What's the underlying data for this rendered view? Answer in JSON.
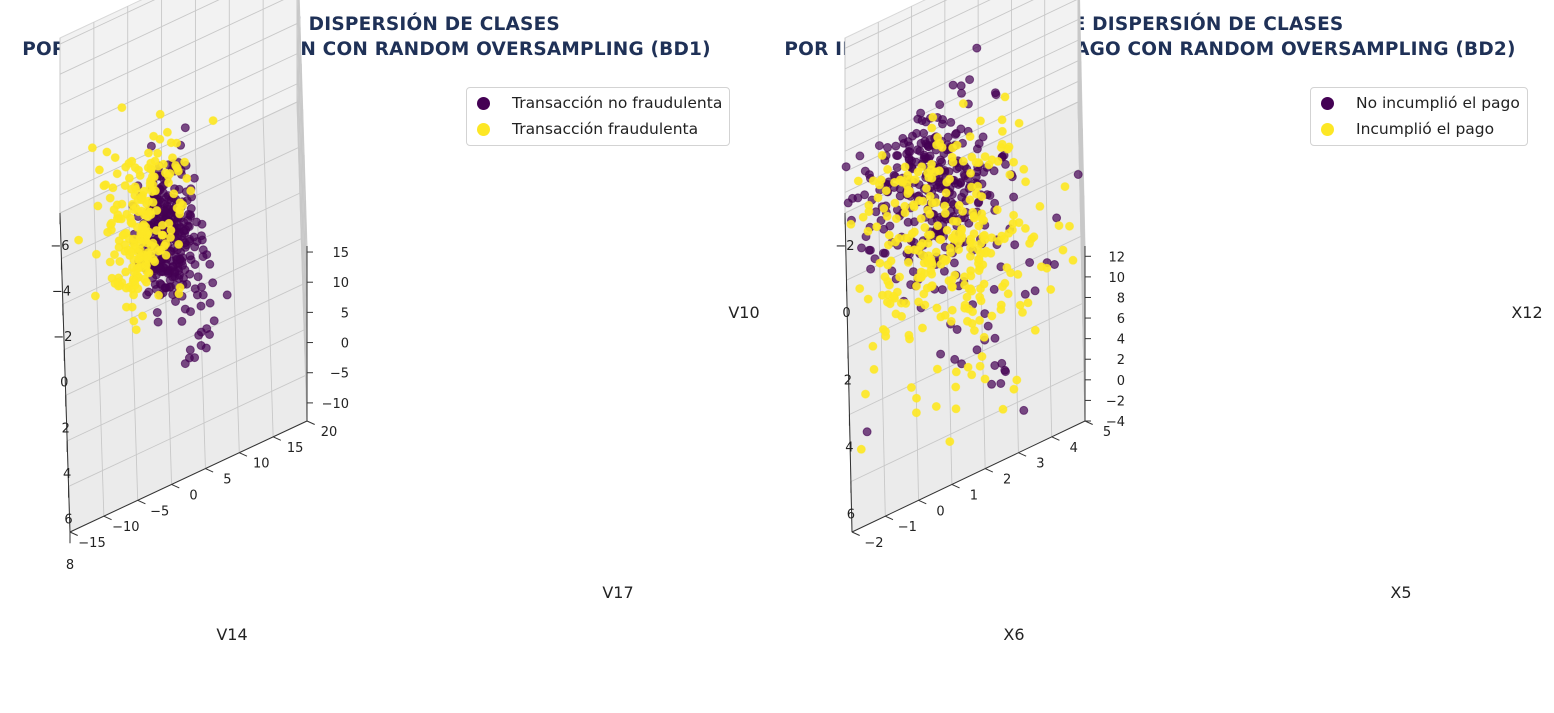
{
  "colors": {
    "class0": "#440154",
    "class1": "#fde725",
    "pane": "#f2f2f2",
    "grid": "#c8c8c8"
  },
  "chart_data": [
    {
      "type": "scatter",
      "title_lines": [
        "GRÁFICO DE DISPERSIÓN DE CLASES",
        "POR TIPO DE TRANSACCIÓN CON RANDOM OVERSAMPLING (BD1)"
      ],
      "xlabel": "V14",
      "ylabel": "V17",
      "zlabel": "V10",
      "xlim": [
        -6,
        8
      ],
      "ylim": [
        -15,
        20
      ],
      "zlim": [
        -13,
        16
      ],
      "xticks": [
        -6,
        -4,
        -2,
        0,
        2,
        4,
        6,
        8
      ],
      "yticks": [
        -15,
        -10,
        -5,
        0,
        5,
        10,
        15,
        20
      ],
      "zticks": [
        -10,
        -5,
        0,
        5,
        10,
        15
      ],
      "legend": {
        "position": "top-right",
        "entries": [
          "Transacción no fraudulenta",
          "Transacción fraudulenta"
        ]
      },
      "series": [
        {
          "name": "Transacción no fraudulenta",
          "clusters": [
            {
              "center": [
                0.5,
                0,
                0.5
              ],
              "spread": [
                1.4,
                2.2,
                1.8
              ],
              "n": 260
            },
            {
              "center": [
                3.2,
                3.0,
                1.8
              ],
              "spread": [
                0.9,
                2.0,
                1.2
              ],
              "n": 40
            },
            {
              "center": [
                6.5,
                4.0,
                3.5
              ],
              "spread": [
                0.5,
                1.2,
                1.0
              ],
              "n": 10
            }
          ]
        },
        {
          "name": "Transacción fraudulenta",
          "clusters": [
            {
              "center": [
                -2.5,
                -3.0,
                -5.0
              ],
              "spread": [
                1.6,
                3.5,
                3.0
              ],
              "n": 150
            },
            {
              "center": [
                0.5,
                -4.0,
                -2.5
              ],
              "spread": [
                1.0,
                2.0,
                1.5
              ],
              "n": 60
            }
          ]
        }
      ]
    },
    {
      "type": "scatter",
      "title_lines": [
        "GRÁFICO DE DISPERSIÓN DE CLASES",
        "POR INCUMPLIMIENTO DE PAGO CON RANDOM OVERSAMPLING (BD2)"
      ],
      "xlabel": "X6",
      "ylabel": "X5",
      "zlabel": "X12",
      "xlim": [
        -2,
        7.5
      ],
      "ylim": [
        -2,
        5
      ],
      "zlim": [
        -4,
        13
      ],
      "xticks": [
        -2,
        0,
        2,
        4,
        6
      ],
      "yticks": [
        -2,
        -1,
        0,
        1,
        2,
        3,
        4,
        5
      ],
      "zticks": [
        -4,
        -2,
        0,
        2,
        4,
        6,
        8,
        10,
        12
      ],
      "legend": {
        "position": "top-right",
        "entries": [
          "No incumplió el pago",
          "Incumplió el pago"
        ]
      },
      "series": [
        {
          "name": "No incumplió el pago",
          "clusters": [
            {
              "center": [
                -1.2,
                0.3,
                0.8
              ],
              "spread": [
                0.4,
                1.0,
                1.8
              ],
              "n": 110
            },
            {
              "center": [
                0.2,
                0.5,
                1.2
              ],
              "spread": [
                0.4,
                1.1,
                1.8
              ],
              "n": 110
            },
            {
              "center": [
                1.5,
                1.0,
                1.5
              ],
              "spread": [
                0.6,
                1.2,
                2.0
              ],
              "n": 90
            },
            {
              "center": [
                4.5,
                2.5,
                0.5
              ],
              "spread": [
                1.2,
                1.5,
                2.0
              ],
              "n": 35
            }
          ]
        },
        {
          "name": "Incumplió el pago",
          "clusters": [
            {
              "center": [
                0.0,
                0.5,
                1.2
              ],
              "spread": [
                0.6,
                1.2,
                2.0
              ],
              "n": 90
            },
            {
              "center": [
                2.0,
                1.2,
                0.5
              ],
              "spread": [
                0.7,
                1.3,
                1.8
              ],
              "n": 160
            },
            {
              "center": [
                4.5,
                2.0,
                0.0
              ],
              "spread": [
                1.2,
                1.5,
                1.5
              ],
              "n": 60
            }
          ]
        }
      ]
    }
  ]
}
